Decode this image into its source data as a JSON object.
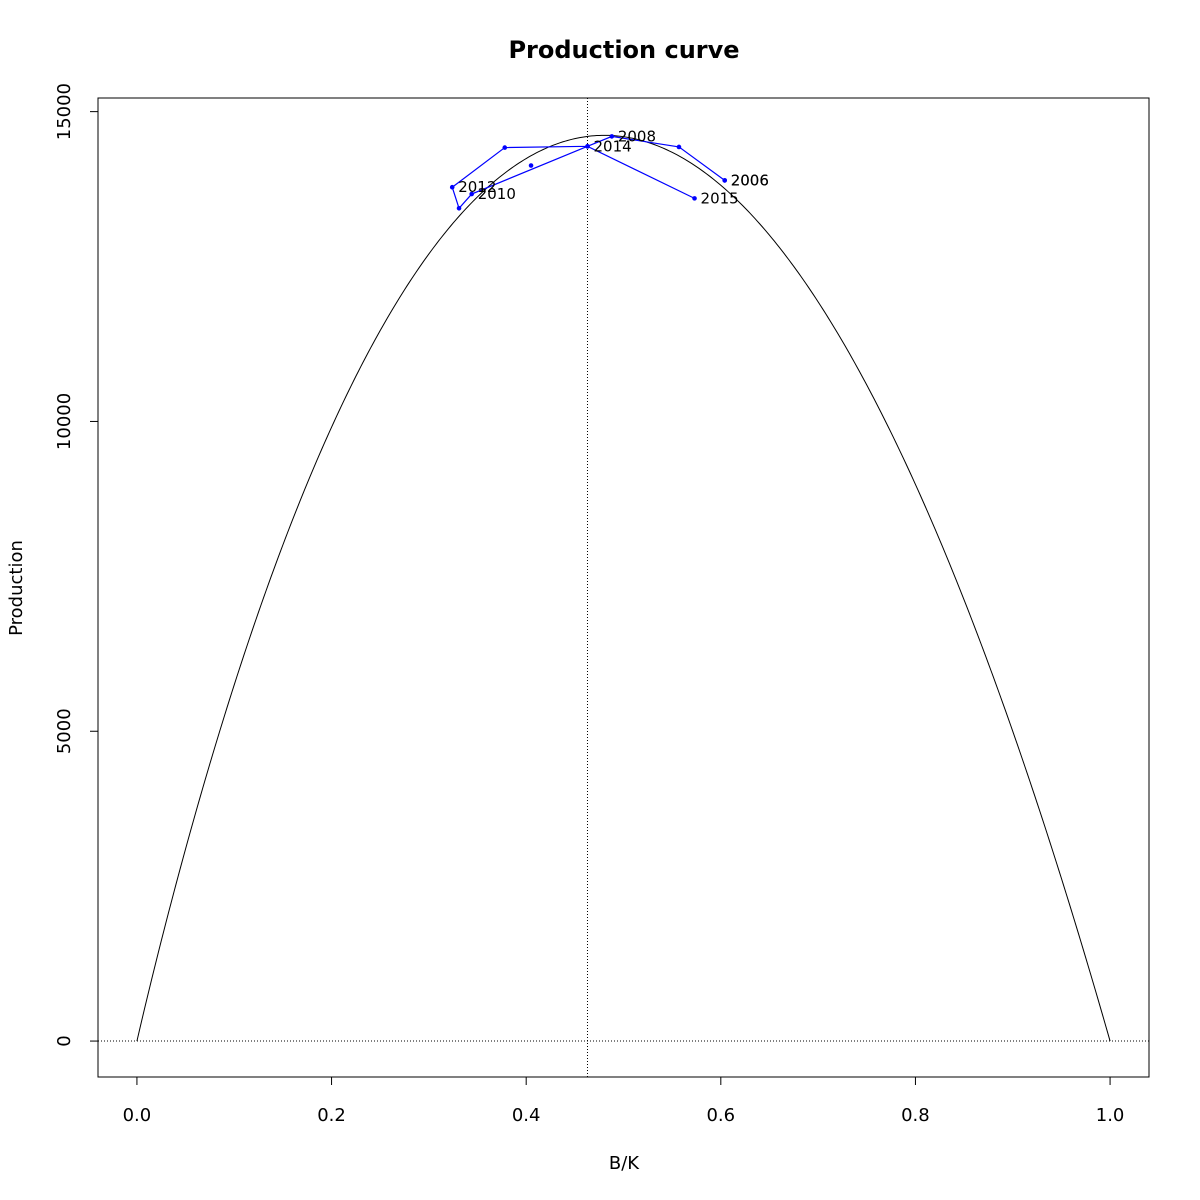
{
  "chart_data": {
    "type": "line",
    "title": "Production curve",
    "xlabel": "B/K",
    "ylabel": "Production",
    "xlim": [
      -0.04,
      1.04
    ],
    "ylim": [
      -580,
      15220
    ],
    "x_ticks": [
      "0.0",
      "0.2",
      "0.4",
      "0.6",
      "0.8",
      "1.0"
    ],
    "y_ticks": [
      "0",
      "5000",
      "10000",
      "15000"
    ],
    "curve": {
      "color": "#000000",
      "peak_x": 0.463,
      "peak_y": 14600
    },
    "reference_lines": {
      "vertical_x": 0.463,
      "horizontal_y": 0,
      "style": "dotted"
    },
    "series": [
      {
        "color": "#0000ff",
        "points": [
          {
            "x": 0.604,
            "y": 13890,
            "label": "2006"
          },
          {
            "x": 0.557,
            "y": 14430,
            "label": ""
          },
          {
            "x": 0.488,
            "y": 14600,
            "label": "2008"
          },
          {
            "x": 0.463,
            "y": 14440,
            "label": ""
          },
          {
            "x": 0.344,
            "y": 13670,
            "label": "2010"
          },
          {
            "x": 0.331,
            "y": 13440,
            "label": ""
          },
          {
            "x": 0.324,
            "y": 13780,
            "label": "2012"
          },
          {
            "x": 0.378,
            "y": 14420,
            "label": ""
          },
          {
            "x": 0.463,
            "y": 14440,
            "label": "2014"
          },
          {
            "x": 0.573,
            "y": 13600,
            "label": "2015"
          }
        ]
      }
    ],
    "extra_labels": [
      {
        "x": 0.604,
        "y": 13890,
        "label": "2006"
      },
      {
        "x": 0.405,
        "y": 14130,
        "label": ""
      }
    ]
  }
}
